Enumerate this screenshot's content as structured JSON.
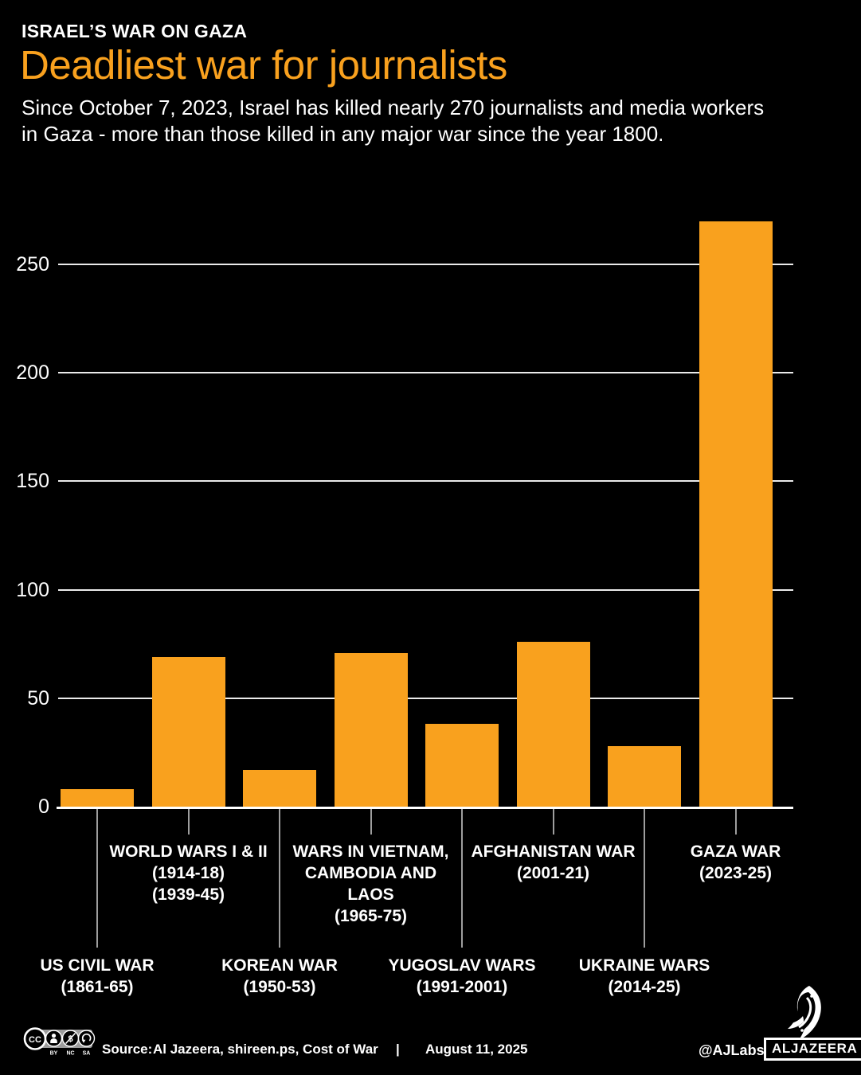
{
  "header": {
    "kicker": "ISRAEL’S WAR ON GAZA",
    "title": "Deadliest war for journalists",
    "subtitle_line1": "Since October 7, 2023, Israel has killed nearly 270 journalists and media workers",
    "subtitle_line2": "in Gaza - more than those killed in any major war since the year 1800."
  },
  "colors": {
    "accent_orange": "#F9A11E",
    "background": "#000000",
    "text": "#FFFFFF",
    "gridline": "#FFFFFF",
    "leader_line": "#9E9E9E"
  },
  "chart_data": {
    "type": "bar",
    "title": "Deadliest war for journalists",
    "xlabel": "",
    "ylabel": "",
    "categories": [
      "US Civil War (1861-65)",
      "World Wars I & II (1914-18, 1939-45)",
      "Korean War (1950-53)",
      "Wars in Vietnam, Cambodia and Laos (1965-75)",
      "Yugoslav Wars (1991-2001)",
      "Afghanistan War (2001-21)",
      "Ukraine Wars (2014-25)",
      "Gaza War (2023-25)"
    ],
    "values": [
      8,
      69,
      17,
      71,
      38,
      76,
      28,
      270
    ],
    "ylim": [
      0,
      275
    ],
    "yticks": [
      0,
      50,
      100,
      150,
      200,
      250
    ],
    "grid": "horizontal gridlines on",
    "legend": "none",
    "bar_color": "#F9A11E",
    "bars": [
      {
        "label_lines": [
          "US CIVIL WAR",
          "(1861-65)"
        ],
        "value": 8,
        "label_row": "bottom"
      },
      {
        "label_lines": [
          "WORLD WARS I & II",
          "(1914-18)",
          "(1939-45)"
        ],
        "value": 69,
        "label_row": "top"
      },
      {
        "label_lines": [
          "KOREAN WAR",
          "(1950-53)"
        ],
        "value": 17,
        "label_row": "bottom"
      },
      {
        "label_lines": [
          "WARS IN VIETNAM,",
          "CAMBODIA AND",
          "LAOS",
          "(1965-75)"
        ],
        "value": 71,
        "label_row": "top"
      },
      {
        "label_lines": [
          "YUGOSLAV WARS",
          "(1991-2001)"
        ],
        "value": 38,
        "label_row": "bottom"
      },
      {
        "label_lines": [
          "AFGHANISTAN WAR",
          "(2001-21)"
        ],
        "value": 76,
        "label_row": "top"
      },
      {
        "label_lines": [
          "UKRAINE WARS",
          "(2014-25)"
        ],
        "value": 28,
        "label_row": "bottom"
      },
      {
        "label_lines": [
          "GAZA WAR",
          "(2023-25)"
        ],
        "value": 270,
        "label_row": "top"
      }
    ]
  },
  "footer": {
    "license_icons": [
      "cc-icon",
      "by-person-icon",
      "nc-dollar-icon",
      "sa-arrow-icon"
    ],
    "license_sublabels": [
      "BY",
      "NC",
      "SA"
    ],
    "source_label": "Source:",
    "source_value": "Al Jazeera, shireen.ps, Cost of War",
    "separator": "|",
    "date": "August 11, 2025",
    "credit": "@AJLabs",
    "brand": "ALJAZEERA"
  }
}
